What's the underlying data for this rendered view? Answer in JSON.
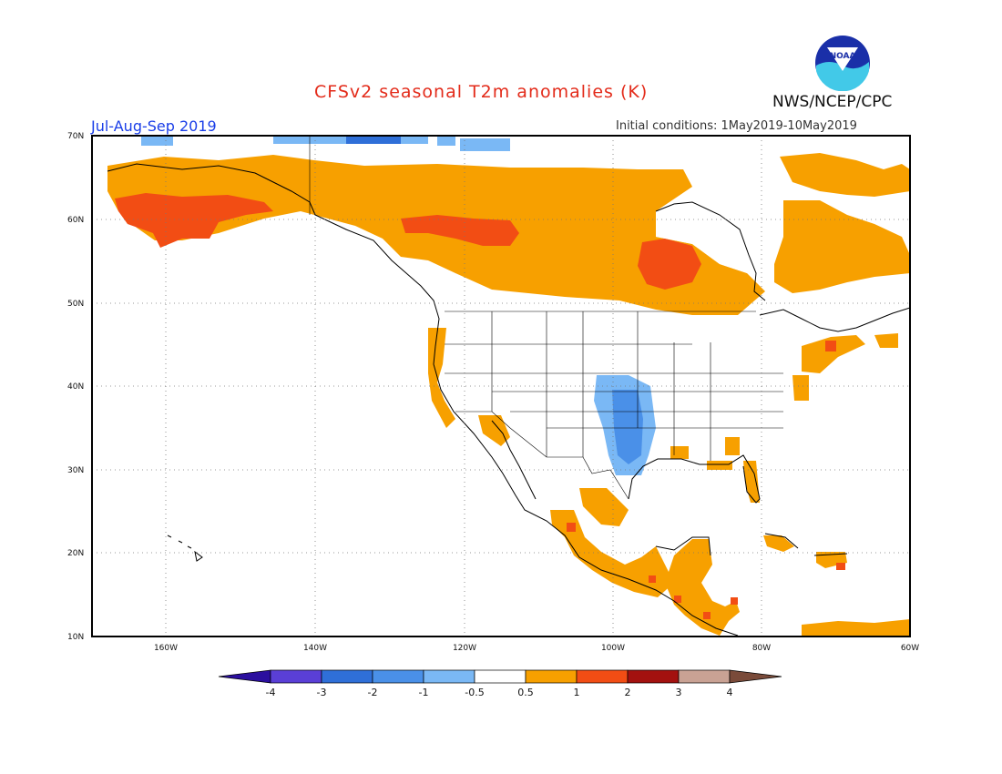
{
  "header": {
    "title": "CFSv2 seasonal T2m anomalies (K)",
    "agency": "NWS/NCEP/CPC",
    "period": "Jul-Aug-Sep 2019",
    "initial_conditions": "Initial conditions: 1May2019-10May2019",
    "logo_text": "NOAA"
  },
  "map": {
    "lat_labels": [
      "70N",
      "60N",
      "50N",
      "40N",
      "30N",
      "20N",
      "10N"
    ],
    "lon_labels": [
      "160W",
      "140W",
      "120W",
      "100W",
      "80W",
      "60W"
    ],
    "colors": {
      "ocean": "#ffffff",
      "land_outline": "#000000",
      "warm": "#f7a000",
      "warmer": "#f24d14",
      "cool": "#7ab8f5",
      "cooler": "#4a90e8",
      "coolest": "#2f6fd8"
    },
    "anomaly_regions": [
      {
        "name": "alaska-warm",
        "level": "0.5-1"
      },
      {
        "name": "alaska-south-strong",
        "level": "1-2"
      },
      {
        "name": "canada-warm",
        "level": "0.5-1"
      },
      {
        "name": "nw-canada-strong",
        "level": "1-2"
      },
      {
        "name": "hudson-bay-strong",
        "level": "1-2"
      },
      {
        "name": "labrador-warm",
        "level": "0.5-1"
      },
      {
        "name": "arctic-cool",
        "level": "-1--0.5"
      },
      {
        "name": "great-plains-cool",
        "level": "-1--0.5"
      },
      {
        "name": "west-coast-warm",
        "level": "0.5-1"
      },
      {
        "name": "mexico-warm",
        "level": "0.5-1"
      },
      {
        "name": "central-america-warm",
        "level": "0.5-1"
      },
      {
        "name": "new-england-warm",
        "level": "0.5-1"
      },
      {
        "name": "caribbean-warm",
        "level": "0.5-1"
      }
    ]
  },
  "colorbar": {
    "labels": [
      "-4",
      "-3",
      "-2",
      "-1",
      "-0.5",
      "0.5",
      "1",
      "2",
      "3",
      "4"
    ],
    "colors": [
      "#2b0f9e",
      "#5a3fd6",
      "#2f6fd8",
      "#4a90e8",
      "#7ab8f5",
      "#ffffff",
      "#f7a000",
      "#f24d14",
      "#a3110f",
      "#c9a294",
      "#7a4b3a"
    ]
  }
}
